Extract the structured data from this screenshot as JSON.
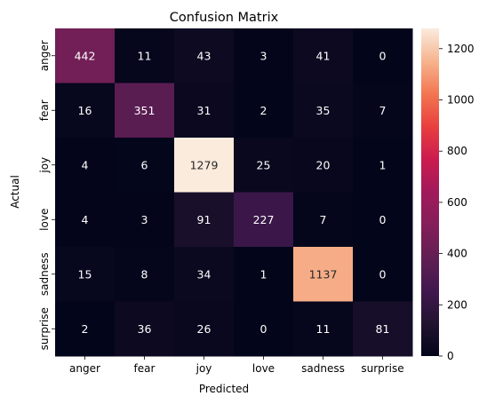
{
  "chart_data": {
    "type": "heatmap",
    "title": "Confusion Matrix",
    "xlabel": "Predicted",
    "ylabel": "Actual",
    "x_categories": [
      "anger",
      "fear",
      "joy",
      "love",
      "sadness",
      "surprise"
    ],
    "y_categories": [
      "anger",
      "fear",
      "joy",
      "love",
      "sadness",
      "surprise"
    ],
    "values": [
      [
        442,
        11,
        43,
        3,
        41,
        0
      ],
      [
        16,
        351,
        31,
        2,
        35,
        7
      ],
      [
        4,
        6,
        1279,
        25,
        20,
        1
      ],
      [
        4,
        3,
        91,
        227,
        7,
        0
      ],
      [
        15,
        8,
        34,
        1,
        1137,
        0
      ],
      [
        2,
        36,
        26,
        0,
        11,
        81
      ]
    ],
    "colorbar": {
      "range": [
        0,
        1279
      ],
      "ticks": [
        0,
        200,
        400,
        600,
        800,
        1000,
        1200
      ],
      "colormap": "rocket"
    },
    "grid": false
  }
}
